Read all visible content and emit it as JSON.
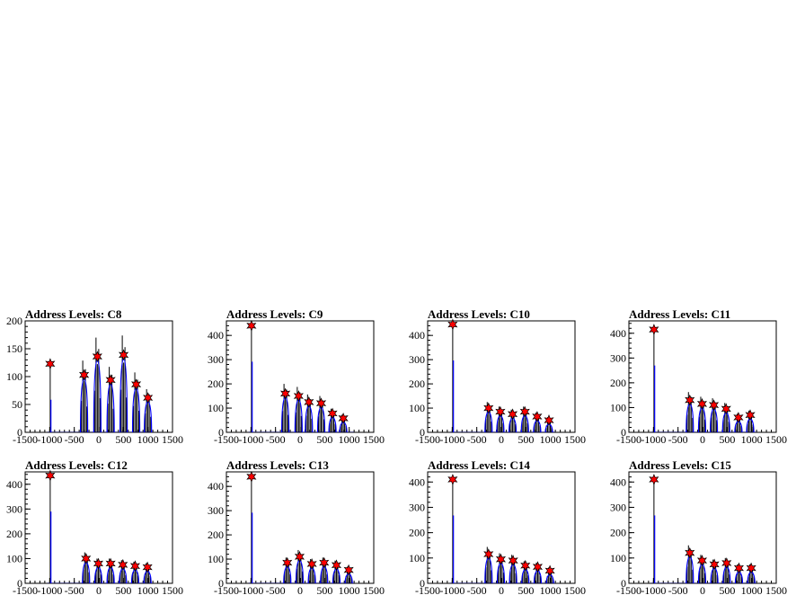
{
  "chart_data": [
    {
      "type": "line",
      "title": "Address Levels: C8",
      "xlim": [
        -1500,
        1500
      ],
      "ylim": [
        0,
        200
      ],
      "xticks": [
        -1500,
        -1000,
        -500,
        0,
        500,
        1000,
        1500
      ],
      "yticks": [
        0,
        50,
        100,
        150,
        200
      ],
      "peaks": [
        {
          "x": -990,
          "y": 123
        },
        {
          "x": -300,
          "y": 103
        },
        {
          "x": -30,
          "y": 136
        },
        {
          "x": 240,
          "y": 94
        },
        {
          "x": 505,
          "y": 139
        },
        {
          "x": 760,
          "y": 86
        },
        {
          "x": 1000,
          "y": 62
        }
      ]
    },
    {
      "type": "line",
      "title": "Address Levels: C9",
      "xlim": [
        -1500,
        1500
      ],
      "ylim": [
        0,
        460
      ],
      "xticks": [
        -1500,
        -1000,
        -500,
        0,
        500,
        1000,
        1500
      ],
      "yticks": [
        0,
        100,
        200,
        300,
        400
      ],
      "peaks": [
        {
          "x": -990,
          "y": 440
        },
        {
          "x": -300,
          "y": 160
        },
        {
          "x": -30,
          "y": 150
        },
        {
          "x": 180,
          "y": 125
        },
        {
          "x": 430,
          "y": 120
        },
        {
          "x": 660,
          "y": 78
        },
        {
          "x": 880,
          "y": 58
        }
      ]
    },
    {
      "type": "line",
      "title": "Address Levels: C10",
      "xlim": [
        -1500,
        1500
      ],
      "ylim": [
        0,
        460
      ],
      "xticks": [
        -1500,
        -1000,
        -500,
        0,
        500,
        1000,
        1500
      ],
      "yticks": [
        0,
        100,
        200,
        300,
        400
      ],
      "peaks": [
        {
          "x": -990,
          "y": 445
        },
        {
          "x": -260,
          "y": 100
        },
        {
          "x": -20,
          "y": 85
        },
        {
          "x": 230,
          "y": 75
        },
        {
          "x": 480,
          "y": 85
        },
        {
          "x": 730,
          "y": 65
        },
        {
          "x": 970,
          "y": 50
        }
      ]
    },
    {
      "type": "line",
      "title": "Address Levels: C11",
      "xlim": [
        -1500,
        1500
      ],
      "ylim": [
        0,
        450
      ],
      "xticks": [
        -1500,
        -1000,
        -500,
        0,
        500,
        1000,
        1500
      ],
      "yticks": [
        0,
        100,
        200,
        300,
        400
      ],
      "peaks": [
        {
          "x": -990,
          "y": 415
        },
        {
          "x": -260,
          "y": 130
        },
        {
          "x": -10,
          "y": 115
        },
        {
          "x": 230,
          "y": 110
        },
        {
          "x": 480,
          "y": 95
        },
        {
          "x": 730,
          "y": 60
        },
        {
          "x": 970,
          "y": 70
        }
      ]
    },
    {
      "type": "line",
      "title": "Address Levels: C12",
      "xlim": [
        -1500,
        1500
      ],
      "ylim": [
        0,
        450
      ],
      "xticks": [
        -1500,
        -1000,
        -500,
        0,
        500,
        1000,
        1500
      ],
      "yticks": [
        0,
        100,
        200,
        300,
        400
      ],
      "peaks": [
        {
          "x": -990,
          "y": 435
        },
        {
          "x": -260,
          "y": 100
        },
        {
          "x": -10,
          "y": 80
        },
        {
          "x": 240,
          "y": 80
        },
        {
          "x": 490,
          "y": 75
        },
        {
          "x": 740,
          "y": 70
        },
        {
          "x": 990,
          "y": 65
        }
      ]
    },
    {
      "type": "line",
      "title": "Address Levels: C13",
      "xlim": [
        -1500,
        1500
      ],
      "ylim": [
        0,
        460
      ],
      "xticks": [
        -1500,
        -1000,
        -500,
        0,
        500,
        1000,
        1500
      ],
      "yticks": [
        0,
        100,
        200,
        300,
        400
      ],
      "peaks": [
        {
          "x": -990,
          "y": 440
        },
        {
          "x": -260,
          "y": 85
        },
        {
          "x": -10,
          "y": 110
        },
        {
          "x": 240,
          "y": 80
        },
        {
          "x": 490,
          "y": 85
        },
        {
          "x": 740,
          "y": 75
        },
        {
          "x": 990,
          "y": 55
        }
      ]
    },
    {
      "type": "line",
      "title": "Address Levels: C14",
      "xlim": [
        -1500,
        1500
      ],
      "ylim": [
        0,
        440
      ],
      "xticks": [
        -1500,
        -1000,
        -500,
        0,
        500,
        1000,
        1500
      ],
      "yticks": [
        0,
        100,
        200,
        300,
        400
      ],
      "peaks": [
        {
          "x": -990,
          "y": 410
        },
        {
          "x": -260,
          "y": 115
        },
        {
          "x": -10,
          "y": 95
        },
        {
          "x": 240,
          "y": 90
        },
        {
          "x": 490,
          "y": 70
        },
        {
          "x": 740,
          "y": 65
        },
        {
          "x": 990,
          "y": 50
        }
      ]
    },
    {
      "type": "line",
      "title": "Address Levels: C15",
      "xlim": [
        -1500,
        1500
      ],
      "ylim": [
        0,
        440
      ],
      "xticks": [
        -1500,
        -1000,
        -500,
        0,
        500,
        1000,
        1500
      ],
      "yticks": [
        0,
        100,
        200,
        300,
        400
      ],
      "peaks": [
        {
          "x": -990,
          "y": 410
        },
        {
          "x": -260,
          "y": 120
        },
        {
          "x": -10,
          "y": 90
        },
        {
          "x": 240,
          "y": 75
        },
        {
          "x": 490,
          "y": 80
        },
        {
          "x": 740,
          "y": 60
        },
        {
          "x": 990,
          "y": 60
        }
      ]
    }
  ],
  "colors": {
    "hist_black": "#000000",
    "hist_blue": "#0000ff",
    "marker": "#ff0000"
  }
}
